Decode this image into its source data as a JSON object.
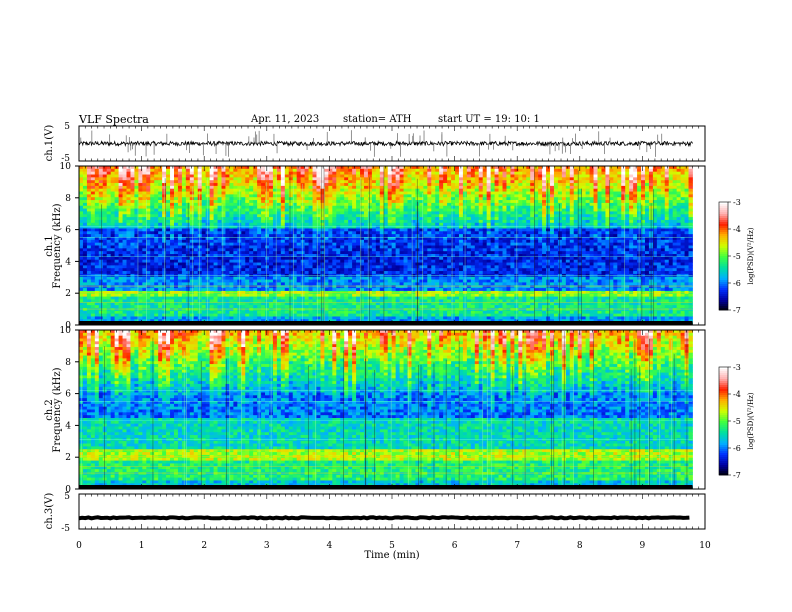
{
  "header": {
    "title": "VLF Spectra",
    "date": "Apr. 11, 2023",
    "station": "station= ATH",
    "start": "start UT =   19: 10: 1"
  },
  "chart_data": [
    {
      "type": "line",
      "panel": "ch1-waveform",
      "ylabel": "ch.1(V)",
      "ylim": [
        -5,
        5
      ],
      "yticks": [
        "5",
        "-5"
      ],
      "xlim": [
        0,
        10
      ],
      "series": [
        {
          "baseline": 0,
          "noise_amplitude": 0.6,
          "spike_amplitude": 3
        }
      ]
    },
    {
      "type": "heatmap",
      "panel": "ch1-spectrogram",
      "ylabel": "ch.1\nFrequency (kHz)",
      "ylim": [
        0,
        10
      ],
      "yticks": [
        "0",
        "2",
        "4",
        "6",
        "8",
        "10"
      ],
      "xlim": [
        0,
        9.8
      ],
      "colorbar": {
        "label": "log(PSD)(V²/Hz)",
        "ticks": [
          "-3",
          "-4",
          "-5",
          "-6",
          "-7"
        ],
        "range": [
          -7,
          -3
        ]
      }
    },
    {
      "type": "heatmap",
      "panel": "ch2-spectrogram",
      "ylabel": "ch.2\nFrequency (kHz)",
      "ylim": [
        0,
        10
      ],
      "yticks": [
        "0",
        "2",
        "4",
        "6",
        "8",
        "10"
      ],
      "xlim": [
        0,
        9.8
      ],
      "colorbar": {
        "label": "log(PSD)(V²/Hz)",
        "ticks": [
          "-3",
          "-4",
          "-5",
          "-6",
          "-7"
        ],
        "range": [
          -7,
          -3
        ]
      }
    },
    {
      "type": "line",
      "panel": "ch3-waveform",
      "ylabel": "ch.3(V)",
      "ylim": [
        -5,
        5
      ],
      "yticks": [
        "5",
        "-5"
      ],
      "xlim": [
        0,
        10
      ],
      "series": [
        {
          "baseline": -1.8,
          "noise_amplitude": 0.15
        }
      ]
    }
  ],
  "xaxis": {
    "label": "Time  (min)",
    "ticks": [
      "0",
      "1",
      "2",
      "3",
      "4",
      "5",
      "6",
      "7",
      "8",
      "9",
      "10"
    ],
    "range": [
      0,
      10
    ]
  },
  "colors": {
    "frame": "#000000",
    "colormap": [
      "#000000",
      "#0000a0",
      "#0030ff",
      "#00b0ff",
      "#00e0a0",
      "#40ff40",
      "#d0ff00",
      "#ffb000",
      "#ff2000",
      "#ffb0b0",
      "#ffffff"
    ]
  }
}
